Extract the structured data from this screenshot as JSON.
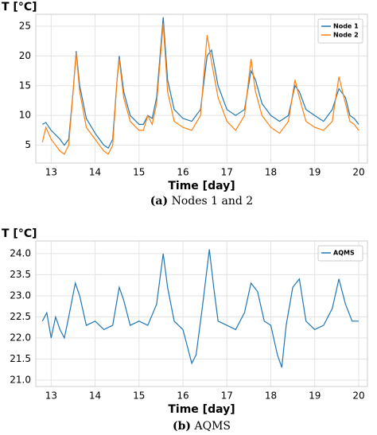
{
  "chart_data": [
    {
      "type": "line",
      "ylabel": "T [°C]",
      "xlabel": "Time [day]",
      "caption_label": "(a)",
      "caption": "Nodes 1 and 2",
      "x": [
        12.8,
        12.88,
        13.0,
        13.2,
        13.3,
        13.4,
        13.5,
        13.57,
        13.65,
        13.8,
        14.0,
        14.2,
        14.3,
        14.4,
        14.5,
        14.55,
        14.65,
        14.8,
        15.0,
        15.1,
        15.2,
        15.3,
        15.4,
        15.55,
        15.65,
        15.8,
        16.0,
        16.2,
        16.4,
        16.55,
        16.65,
        16.8,
        17.0,
        17.2,
        17.4,
        17.55,
        17.65,
        17.8,
        18.0,
        18.2,
        18.4,
        18.55,
        18.65,
        18.8,
        19.0,
        19.2,
        19.4,
        19.55,
        19.7,
        19.8,
        19.9,
        20.0
      ],
      "series": [
        {
          "name": "Node 1",
          "color": "#1f77b4",
          "values": [
            8.5,
            8.8,
            7.5,
            6,
            5,
            6,
            14,
            20.8,
            15,
            9.5,
            7,
            5,
            4.5,
            6,
            16,
            20,
            14,
            10,
            8.5,
            8.5,
            10,
            9.5,
            13,
            26.5,
            16,
            11,
            9.5,
            9,
            11,
            20,
            21,
            15,
            11,
            10,
            11,
            17.5,
            16,
            12,
            10,
            9,
            10,
            15,
            14,
            11,
            10,
            9,
            11,
            14.5,
            13,
            10,
            9.5,
            8.5
          ]
        },
        {
          "name": "Node 2",
          "color": "#ff7f0e",
          "values": [
            5.5,
            8,
            6,
            4,
            3.5,
            5,
            14,
            20.5,
            14,
            8,
            6,
            4,
            3.5,
            5,
            16,
            19.5,
            13,
            9,
            7.5,
            7.5,
            10,
            8.5,
            12,
            25.5,
            14,
            9,
            8,
            7.5,
            10,
            23.5,
            19,
            13,
            9,
            7.5,
            10,
            19.5,
            14,
            10,
            8,
            7,
            9,
            16,
            13,
            9,
            8,
            7.5,
            9,
            16.5,
            12,
            9,
            8.5,
            7.5
          ]
        }
      ],
      "xlim": [
        12.65,
        20.2
      ],
      "ylim": [
        2,
        27
      ],
      "xticks": [
        13,
        14,
        15,
        16,
        17,
        18,
        19,
        20
      ],
      "yticks": [
        5,
        10,
        15,
        20,
        25
      ],
      "grid": true,
      "legend": "upper right"
    },
    {
      "type": "line",
      "ylabel": "T [°C]",
      "xlabel": "Time [day]",
      "caption_label": "(b)",
      "caption": "AQMS",
      "x": [
        12.8,
        12.9,
        13.0,
        13.1,
        13.2,
        13.3,
        13.4,
        13.55,
        13.65,
        13.8,
        14.0,
        14.2,
        14.4,
        14.55,
        14.65,
        14.8,
        15.0,
        15.2,
        15.4,
        15.55,
        15.65,
        15.8,
        16.0,
        16.2,
        16.3,
        16.45,
        16.6,
        16.7,
        16.8,
        17.0,
        17.2,
        17.4,
        17.55,
        17.7,
        17.85,
        18.0,
        18.15,
        18.25,
        18.35,
        18.5,
        18.65,
        18.8,
        19.0,
        19.2,
        19.4,
        19.55,
        19.7,
        19.85,
        20.0
      ],
      "series": [
        {
          "name": "AQMS",
          "color": "#1f77b4",
          "values": [
            22.4,
            22.6,
            22.0,
            22.5,
            22.2,
            22.0,
            22.5,
            23.3,
            23.0,
            22.3,
            22.4,
            22.2,
            22.3,
            23.2,
            22.9,
            22.3,
            22.4,
            22.3,
            22.8,
            24.0,
            23.2,
            22.4,
            22.2,
            21.4,
            21.6,
            22.8,
            24.1,
            23.2,
            22.4,
            22.3,
            22.2,
            22.6,
            23.3,
            23.1,
            22.4,
            22.3,
            21.6,
            21.3,
            22.3,
            23.2,
            23.4,
            22.4,
            22.2,
            22.3,
            22.7,
            23.4,
            22.8,
            22.4,
            22.4
          ]
        }
      ],
      "xlim": [
        12.65,
        20.2
      ],
      "ylim": [
        20.85,
        24.3
      ],
      "xticks": [
        13,
        14,
        15,
        16,
        17,
        18,
        19,
        20
      ],
      "yticks": [
        {
          "value": 21,
          "label": "21.0"
        },
        21.5,
        {
          "value": 22,
          "label": "22.0"
        },
        22.5,
        {
          "value": 23,
          "label": "23.0"
        },
        23.5,
        {
          "value": 24,
          "label": "24.0"
        }
      ],
      "grid": true,
      "legend": "upper right"
    }
  ]
}
